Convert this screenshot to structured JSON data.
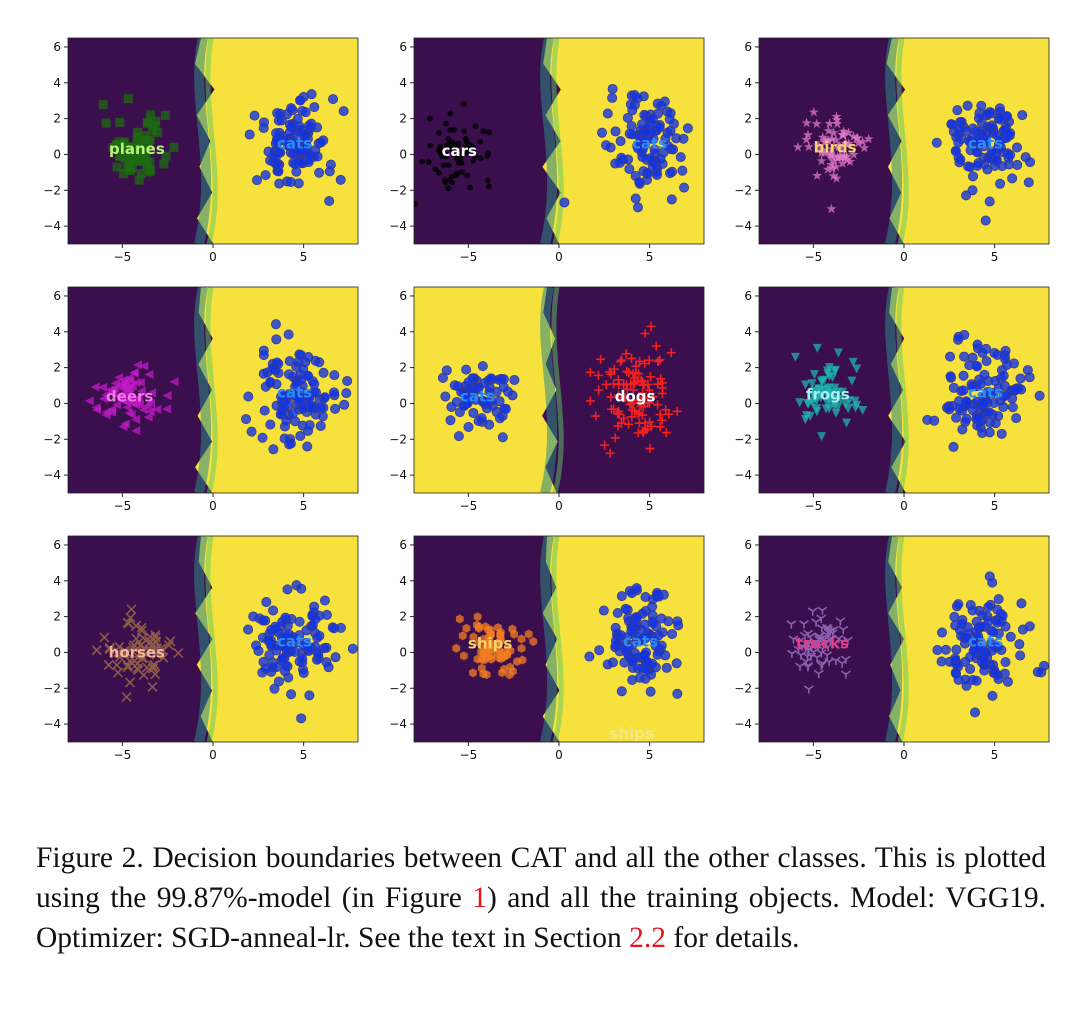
{
  "figure": {
    "caption": {
      "label": "Figure 2.",
      "text_1": "Decision boundaries between CAT and all the other classes. This is plotted using the 99.87%-model (in Figure ",
      "ref_1": "1",
      "text_2": ") and all the training objects. Model: VGG19. Optimizer: SGD-anneal-lr. See the text in Section ",
      "ref_2": "2.2",
      "text_3": " for details."
    }
  },
  "colors": {
    "dark_region": "#3b0f4d",
    "light_region": "#f7e13c",
    "boundary_teal": "#2b8a86",
    "boundary_green": "#5ec962",
    "cats": "#1033e8",
    "cats_outline": "#3a3b8c"
  },
  "chart_data": [
    {
      "type": "scatter",
      "xlim": [
        -8,
        8
      ],
      "ylim": [
        -5,
        6.5
      ],
      "xticks": [
        -5,
        0,
        5
      ],
      "yticks": [
        -4,
        -2,
        0,
        2,
        4,
        6
      ],
      "left_label": "planes",
      "right_label": "cats",
      "left_color": "#1d6b12",
      "left_label_color": "#b9f27a",
      "right_label_color": "#2a8cf5",
      "left_marker": "square",
      "left_center": [
        -4.2,
        0.3
      ],
      "right_center": [
        4.5,
        0.6
      ],
      "boundary_x": 0,
      "light_side": "right"
    },
    {
      "type": "scatter",
      "xlim": [
        -8,
        8
      ],
      "ylim": [
        -5,
        6.5
      ],
      "xticks": [
        -5,
        0,
        5
      ],
      "yticks": [
        -4,
        -2,
        0,
        2,
        4,
        6
      ],
      "left_label": "cars",
      "right_label": "cats",
      "left_color": "#000000",
      "left_label_color": "#ffffff",
      "right_label_color": "#2a8cf5",
      "left_marker": "circle-small",
      "left_center": [
        -5.5,
        0.2
      ],
      "right_center": [
        5,
        0.6
      ],
      "boundary_x": 0,
      "light_side": "right"
    },
    {
      "type": "scatter",
      "xlim": [
        -8,
        8
      ],
      "ylim": [
        -5,
        6.5
      ],
      "xticks": [
        -5,
        0,
        5
      ],
      "yticks": [
        -4,
        -2,
        0,
        2,
        4,
        6
      ],
      "left_label": "birds",
      "right_label": "cats",
      "left_color": "#e07ac7",
      "left_label_color": "#f7d36b",
      "right_label_color": "#2a8cf5",
      "left_marker": "star",
      "left_center": [
        -3.8,
        0.4
      ],
      "right_center": [
        4.5,
        0.6
      ],
      "boundary_x": 0,
      "light_side": "right"
    },
    {
      "type": "scatter",
      "xlim": [
        -8,
        8
      ],
      "ylim": [
        -5,
        6.5
      ],
      "xticks": [
        -5,
        0,
        5
      ],
      "yticks": [
        -4,
        -2,
        0,
        2,
        4,
        6
      ],
      "left_label": "deers",
      "right_label": "cats",
      "left_color": "#c319c8",
      "left_label_color": "#f178e8",
      "right_label_color": "#2a8cf5",
      "left_marker": "triangle-left",
      "left_center": [
        -4.6,
        0.4
      ],
      "right_center": [
        4.5,
        0.6
      ],
      "boundary_x": 0,
      "light_side": "right"
    },
    {
      "type": "scatter",
      "xlim": [
        -8,
        8
      ],
      "ylim": [
        -5,
        6.5
      ],
      "xticks": [
        -5,
        0,
        5
      ],
      "yticks": [
        -4,
        -2,
        0,
        2,
        4,
        6
      ],
      "left_label": "cats",
      "right_label": "dogs",
      "left_color": "#1033e8",
      "right_color": "#f2211f",
      "left_label_color": "#2a8cf5",
      "right_label_color": "#ffffff",
      "left_marker": "circle",
      "right_marker": "plus",
      "left_center": [
        -4.5,
        0.4
      ],
      "right_center": [
        4.2,
        0.4
      ],
      "boundary_x": 0,
      "light_side": "left"
    },
    {
      "type": "scatter",
      "xlim": [
        -8,
        8
      ],
      "ylim": [
        -5,
        6.5
      ],
      "xticks": [
        -5,
        0,
        5
      ],
      "yticks": [
        -4,
        -2,
        0,
        2,
        4,
        6
      ],
      "left_label": "frogs",
      "right_label": "cats",
      "left_color": "#1fb4b0",
      "left_label_color": "#a0f7f0",
      "right_label_color": "#2a8cf5",
      "left_marker": "triangle-down",
      "left_center": [
        -4.2,
        0.5
      ],
      "right_center": [
        4.5,
        0.6
      ],
      "boundary_x": 0,
      "light_side": "right"
    },
    {
      "type": "scatter",
      "xlim": [
        -8,
        8
      ],
      "ylim": [
        -5,
        6.5
      ],
      "xticks": [
        -5,
        0,
        5
      ],
      "yticks": [
        -4,
        -2,
        0,
        2,
        4,
        6
      ],
      "left_label": "horses",
      "right_label": "cats",
      "left_color": "#8c5a48",
      "left_label_color": "#f7b59a",
      "right_label_color": "#2a8cf5",
      "left_marker": "x",
      "left_center": [
        -4.2,
        0.0
      ],
      "right_center": [
        4.5,
        0.6
      ],
      "boundary_x": 0,
      "light_side": "right"
    },
    {
      "type": "scatter",
      "xlim": [
        -8,
        8
      ],
      "ylim": [
        -5,
        6.5
      ],
      "xticks": [
        -5,
        0,
        5
      ],
      "yticks": [
        -4,
        -2,
        0,
        2,
        4,
        6
      ],
      "left_label": "ships",
      "right_label": "cats",
      "bottom_label": "ships",
      "left_color": "#f47e22",
      "left_label_color": "#f6d36b",
      "right_label_color": "#2a8cf5",
      "left_marker": "hexagon",
      "left_center": [
        -3.8,
        0.5
      ],
      "right_center": [
        4.5,
        0.6
      ],
      "boundary_x": 0,
      "light_side": "right"
    },
    {
      "type": "scatter",
      "xlim": [
        -8,
        8
      ],
      "ylim": [
        -5,
        6.5
      ],
      "xticks": [
        -5,
        0,
        5
      ],
      "yticks": [
        -4,
        -2,
        0,
        2,
        4,
        6
      ],
      "left_label": "trucks",
      "right_label": "cats",
      "left_color": "#8d5fb0",
      "left_label_color": "#e53b8a",
      "right_label_color": "#2a8cf5",
      "left_marker": "tri",
      "left_center": [
        -4.5,
        0.5
      ],
      "right_center": [
        4.5,
        0.6
      ],
      "boundary_x": 0,
      "light_side": "right"
    }
  ]
}
